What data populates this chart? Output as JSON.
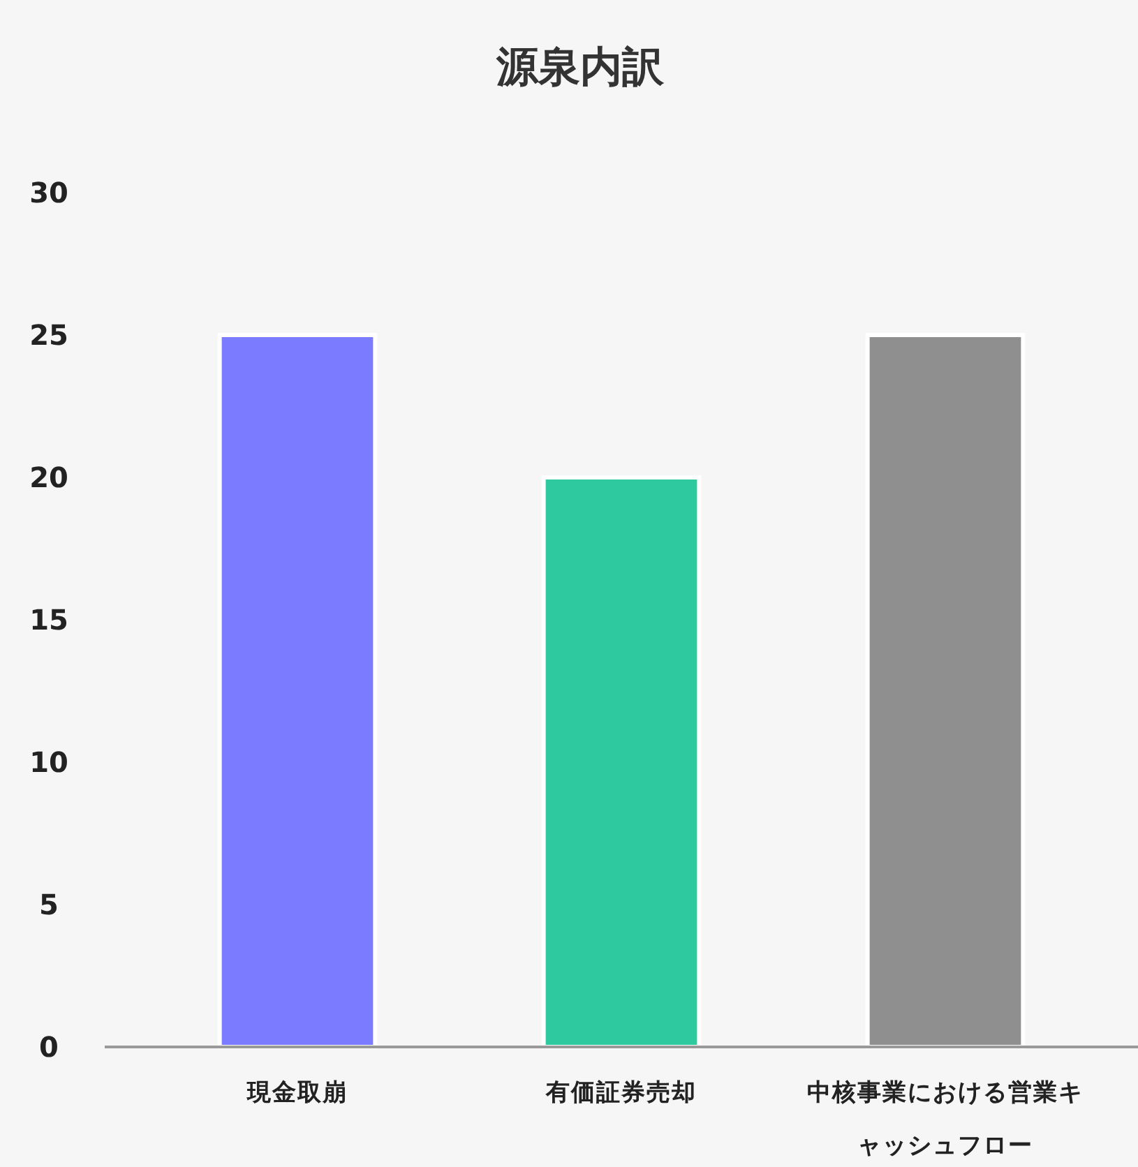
{
  "chart_data": {
    "type": "bar",
    "title": "源泉内訳",
    "categories": [
      "現金取崩",
      "有価証券売却",
      "中核事業における営業キャッシュフロー"
    ],
    "values": [
      25,
      20,
      25
    ],
    "colors": [
      "#7b7bff",
      "#2ec99e",
      "#8f8f8f"
    ],
    "ylim": [
      0,
      30
    ],
    "yticks": [
      0,
      5,
      10,
      15,
      20,
      25,
      30
    ],
    "grid": false
  }
}
